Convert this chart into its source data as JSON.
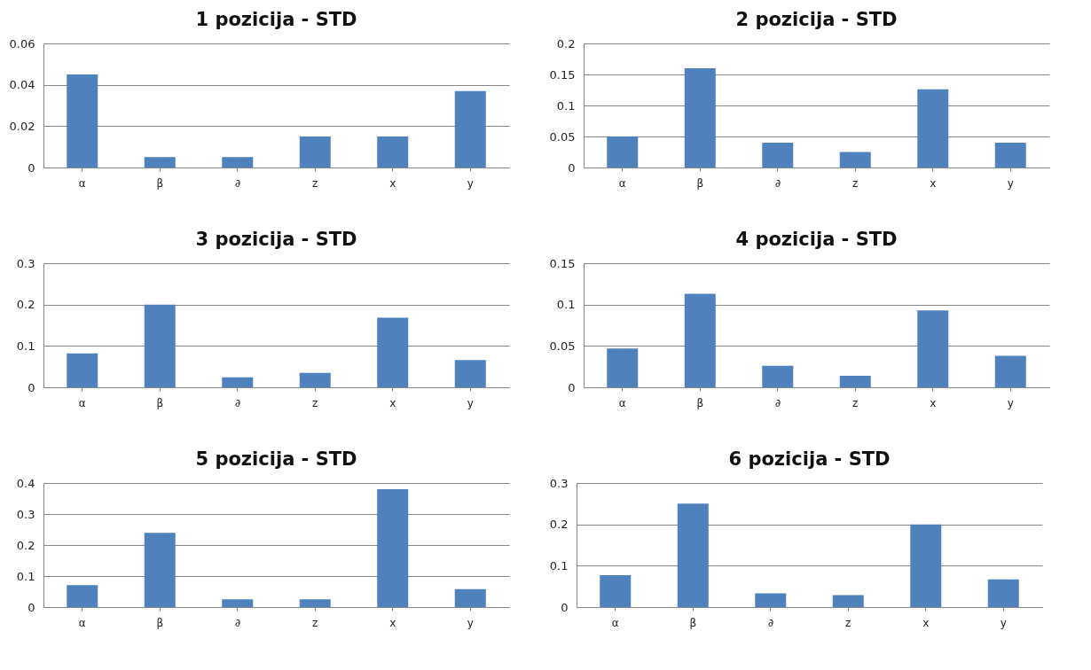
{
  "chart_data": [
    {
      "type": "bar",
      "title": "1 pozicija - STD",
      "categories": [
        "α",
        "β",
        "∂",
        "z",
        "x",
        "y"
      ],
      "values": [
        0.045,
        0.005,
        0.005,
        0.015,
        0.015,
        0.037
      ],
      "color": "#4f81bd",
      "ylim": [
        0,
        0.06
      ],
      "yticks": [
        0,
        0.02,
        0.04,
        0.06
      ],
      "grid": "y"
    },
    {
      "type": "bar",
      "title": "2 pozicija - STD",
      "categories": [
        "α",
        "β",
        "∂",
        "z",
        "x",
        "y"
      ],
      "values": [
        0.05,
        0.16,
        0.04,
        0.025,
        0.126,
        0.04
      ],
      "color": "#4f81bd",
      "ylim": [
        0,
        0.2
      ],
      "yticks": [
        0,
        0.05,
        0.1,
        0.15,
        0.2
      ],
      "grid": "y"
    },
    {
      "type": "bar",
      "title": "3 pozicija - STD",
      "categories": [
        "α",
        "β",
        "∂",
        "z",
        "x",
        "y"
      ],
      "values": [
        0.082,
        0.2,
        0.024,
        0.035,
        0.168,
        0.066
      ],
      "color": "#4f81bd",
      "ylim": [
        0,
        0.3
      ],
      "yticks": [
        0,
        0.1,
        0.2,
        0.3
      ],
      "grid": "y"
    },
    {
      "type": "bar",
      "title": "4 pozicija - STD",
      "categories": [
        "α",
        "β",
        "∂",
        "z",
        "x",
        "y"
      ],
      "values": [
        0.047,
        0.113,
        0.026,
        0.014,
        0.093,
        0.038
      ],
      "color": "#4f81bd",
      "ylim": [
        0,
        0.15
      ],
      "yticks": [
        0,
        0.05,
        0.1,
        0.15
      ],
      "grid": "y"
    },
    {
      "type": "bar",
      "title": "5 pozicija - STD",
      "categories": [
        "α",
        "β",
        "∂",
        "z",
        "x",
        "y"
      ],
      "values": [
        0.071,
        0.239,
        0.025,
        0.025,
        0.38,
        0.058
      ],
      "color": "#4f81bd",
      "ylim": [
        0,
        0.4
      ],
      "yticks": [
        0,
        0.1,
        0.2,
        0.3,
        0.4
      ],
      "grid": "y"
    },
    {
      "type": "bar",
      "title": "6 pozicija - STD",
      "categories": [
        "α",
        "β",
        "∂",
        "z",
        "x",
        "y"
      ],
      "values": [
        0.077,
        0.25,
        0.033,
        0.029,
        0.2,
        0.067
      ],
      "color": "#4f81bd",
      "ylim": [
        0,
        0.3
      ],
      "yticks": [
        0,
        0.1,
        0.2,
        0.3
      ],
      "grid": "y"
    }
  ]
}
